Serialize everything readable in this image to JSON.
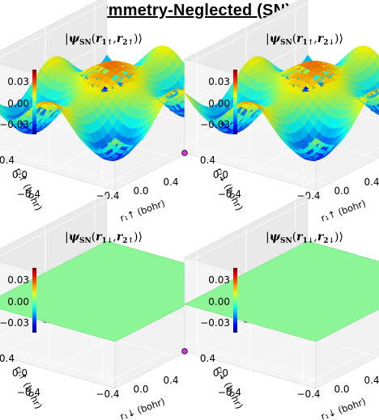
{
  "title": "Symmetry-Neglected (SN)",
  "chart_data": [
    {
      "type": "surface3d",
      "title": {
        "psi": "ψ",
        "sub": "SN",
        "r1": "r",
        "r1sub": "1↑",
        "r2": "r",
        "r2sub": "2↑"
      },
      "zticks": [
        "0.03",
        "0.00",
        "−0.03"
      ],
      "xticks": [
        "−0.4",
        "0.0",
        "0.4"
      ],
      "yticks": [
        "0.4",
        "0.0",
        "−0.4"
      ],
      "xlabel": "r₁↑ (bohr)",
      "ylabel": "r₂↑ (bohr)",
      "xlim": [
        -0.5,
        0.5
      ],
      "ylim": [
        -0.5,
        0.5
      ],
      "zlim": [
        -0.035,
        0.035
      ],
      "colormap": "jet",
      "surface": "oscillating",
      "nuclei": [
        [
          -0.5,
          -0.5
        ],
        [
          -0.5,
          0.0
        ],
        [
          -0.5,
          0.5
        ],
        [
          0.0,
          -0.5
        ],
        [
          0.5,
          -0.5
        ]
      ]
    },
    {
      "type": "surface3d",
      "title": {
        "psi": "ψ",
        "sub": "SN",
        "r1": "r",
        "r1sub": "1↑",
        "r2": "r",
        "r2sub": "2↓"
      },
      "zticks": [
        "0.03",
        "0.00",
        "−0.03"
      ],
      "xticks": [
        "−0.4",
        "0.0",
        "0.4"
      ],
      "yticks": [
        "0.4",
        "0.0",
        "−0.4"
      ],
      "xlabel": "r₁↑ (bohr)",
      "ylabel": "r₂↓ (bohr)",
      "xlim": [
        -0.5,
        0.5
      ],
      "ylim": [
        -0.5,
        0.5
      ],
      "zlim": [
        -0.035,
        0.035
      ],
      "colormap": "jet",
      "surface": "oscillating",
      "nuclei": [
        [
          -0.5,
          -0.5
        ],
        [
          -0.5,
          0.0
        ],
        [
          -0.5,
          0.5
        ],
        [
          0.0,
          -0.5
        ],
        [
          0.5,
          -0.5
        ]
      ]
    },
    {
      "type": "surface3d",
      "title": {
        "psi": "ψ",
        "sub": "SN",
        "r1": "r",
        "r1sub": "1↓",
        "r2": "r",
        "r2sub": "2↑"
      },
      "zticks": [
        "0.03",
        "0.00",
        "−0.03"
      ],
      "xticks": [
        "−0.4",
        "0.0",
        "0.4"
      ],
      "yticks": [
        "0.4",
        "0.0",
        "−0.4"
      ],
      "xlabel": "r₁↓ (bohr)",
      "ylabel": "r₂↑ (bohr)",
      "xlim": [
        -0.5,
        0.5
      ],
      "ylim": [
        -0.5,
        0.5
      ],
      "zlim": [
        -0.035,
        0.035
      ],
      "colormap": "jet",
      "surface": "flat",
      "surface_value": 0.0,
      "nuclei": [
        [
          -0.5,
          -0.5
        ],
        [
          -0.5,
          0.0
        ],
        [
          -0.5,
          0.5
        ],
        [
          0.0,
          -0.5
        ],
        [
          0.5,
          -0.5
        ]
      ]
    },
    {
      "type": "surface3d",
      "title": {
        "psi": "ψ",
        "sub": "SN",
        "r1": "r",
        "r1sub": "1↓",
        "r2": "r",
        "r2sub": "2↓"
      },
      "zticks": [
        "0.03",
        "0.00",
        "−0.03"
      ],
      "xticks": [
        "−0.4",
        "0.0",
        "0.4"
      ],
      "yticks": [
        "0.4",
        "0.0",
        "−0.4"
      ],
      "xlabel": "r₁↓ (bohr)",
      "ylabel": "r₂↓ (bohr)",
      "xlim": [
        -0.5,
        0.5
      ],
      "ylim": [
        -0.5,
        0.5
      ],
      "zlim": [
        -0.035,
        0.035
      ],
      "colormap": "jet",
      "surface": "flat",
      "surface_value": 0.0,
      "nuclei": [
        [
          -0.5,
          -0.5
        ],
        [
          -0.5,
          0.0
        ],
        [
          -0.5,
          0.5
        ],
        [
          0.0,
          -0.5
        ],
        [
          0.5,
          -0.5
        ]
      ]
    }
  ]
}
